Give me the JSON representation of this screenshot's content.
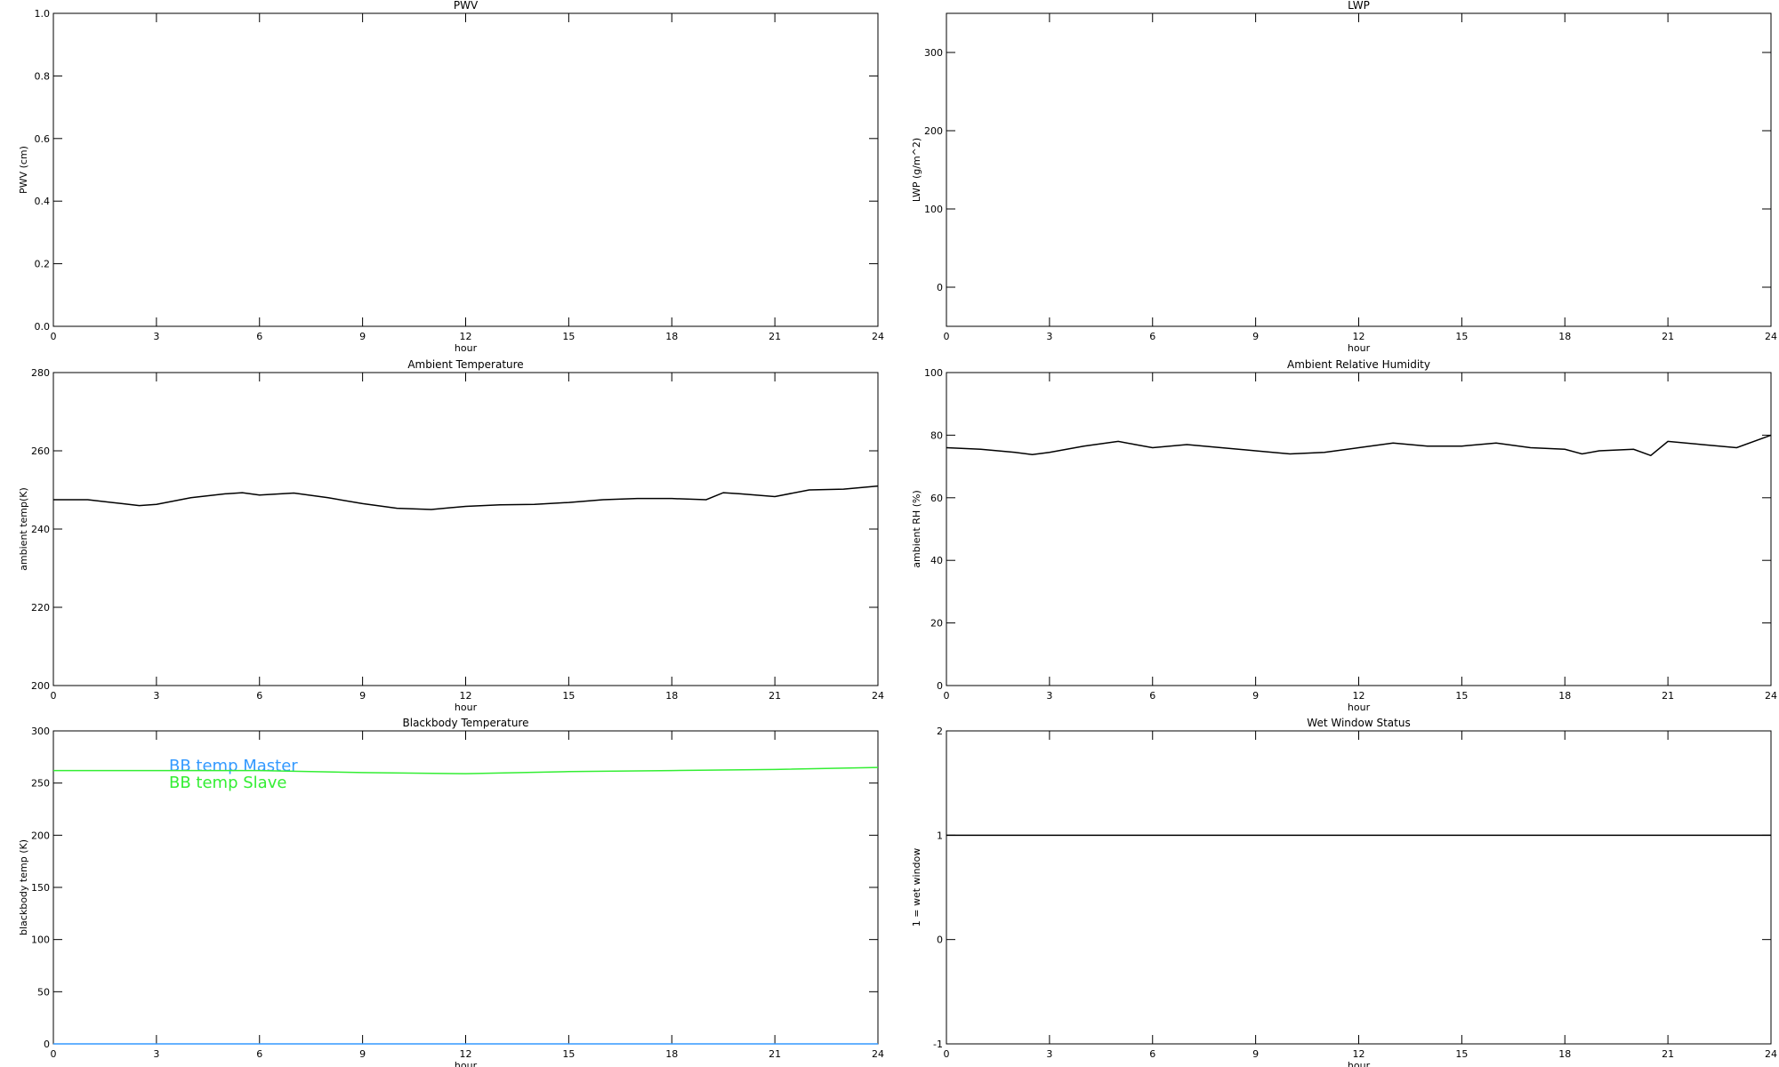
{
  "chart_data": [
    {
      "type": "line",
      "title": "PWV",
      "xlabel": "hour",
      "ylabel": "PWV (cm)",
      "xlim": [
        0,
        24
      ],
      "xticks": [
        0,
        3,
        6,
        9,
        12,
        15,
        18,
        21,
        24
      ],
      "ylim": [
        0,
        1
      ],
      "yticks": [
        {
          "value": 0,
          "label": "0.0"
        },
        0.2,
        0.4,
        0.6,
        0.8,
        {
          "value": 1,
          "label": "1.0"
        }
      ]
    },
    {
      "type": "line",
      "title": "LWP",
      "xlabel": "hour",
      "ylabel": "LWP (g/m^2)",
      "xlim": [
        0,
        24
      ],
      "xticks": [
        0,
        3,
        6,
        9,
        12,
        15,
        18,
        21,
        24
      ],
      "ylim": [
        -50,
        350
      ],
      "yticks": [
        0,
        100,
        200,
        300
      ]
    },
    {
      "type": "line",
      "title": "Ambient Temperature",
      "xlabel": "hour",
      "ylabel": "ambient temp(K)",
      "xlim": [
        0,
        24
      ],
      "xticks": [
        0,
        3,
        6,
        9,
        12,
        15,
        18,
        21,
        24
      ],
      "ylim": [
        200,
        280
      ],
      "yticks": [
        200,
        220,
        240,
        260,
        280
      ],
      "x": [
        0,
        1,
        2,
        2.5,
        3,
        4,
        5,
        5.5,
        6,
        7,
        8,
        9,
        10,
        11,
        12,
        13,
        14,
        15,
        16,
        17,
        18,
        19,
        19.5,
        20,
        21,
        22,
        23,
        24
      ],
      "series": [
        {
          "color": "#000000",
          "values": [
            247.5,
            247.5,
            246.5,
            246,
            246.3,
            248,
            249,
            249.3,
            248.7,
            249.2,
            248,
            246.5,
            245.3,
            245,
            245.8,
            246.2,
            246.3,
            246.8,
            247.5,
            247.8,
            247.8,
            247.5,
            249.3,
            249,
            248.3,
            250,
            250.2,
            251
          ]
        }
      ]
    },
    {
      "type": "line",
      "title": "Ambient Relative Humidity",
      "xlabel": "hour",
      "ylabel": "ambient RH (%)",
      "xlim": [
        0,
        24
      ],
      "xticks": [
        0,
        3,
        6,
        9,
        12,
        15,
        18,
        21,
        24
      ],
      "ylim": [
        0,
        100
      ],
      "yticks": [
        0,
        20,
        40,
        60,
        80,
        100
      ],
      "x": [
        0,
        1,
        2,
        2.5,
        3,
        4,
        5,
        5.5,
        6,
        7,
        8,
        9,
        10,
        11,
        12,
        13,
        14,
        15,
        16,
        17,
        18,
        18.5,
        19,
        20,
        20.5,
        21,
        22,
        23,
        24
      ],
      "series": [
        {
          "color": "#000000",
          "values": [
            76,
            75.5,
            74.5,
            73.8,
            74.5,
            76.5,
            78,
            77,
            76,
            77,
            76,
            75,
            74,
            74.5,
            76,
            77.5,
            76.5,
            76.5,
            77.5,
            76,
            75.5,
            74,
            75,
            75.5,
            73.5,
            78,
            77,
            76,
            80
          ]
        }
      ]
    },
    {
      "type": "line",
      "title": "Blackbody Temperature",
      "xlabel": "hour",
      "ylabel": "blackbody temp (K)",
      "xlim": [
        0,
        24
      ],
      "xticks": [
        0,
        3,
        6,
        9,
        12,
        15,
        18,
        21,
        24
      ],
      "ylim": [
        0,
        300
      ],
      "yticks": [
        0,
        50,
        100,
        150,
        200,
        250,
        300
      ],
      "x": [
        0,
        3,
        6,
        9,
        12,
        15,
        18,
        21,
        24
      ],
      "series": [
        {
          "name": "BB temp Master",
          "color": "#3399ff",
          "values": [
            0,
            0,
            0,
            0,
            0,
            0,
            0,
            0,
            0
          ]
        },
        {
          "name": "BB temp Slave",
          "color": "#33ee33",
          "values": [
            262,
            262,
            262,
            260,
            259,
            261,
            262,
            263,
            265
          ]
        }
      ]
    },
    {
      "type": "line",
      "title": "Wet Window Status",
      "xlabel": "hour",
      "ylabel": "1 = wet window",
      "xlim": [
        0,
        24
      ],
      "xticks": [
        0,
        3,
        6,
        9,
        12,
        15,
        18,
        21,
        24
      ],
      "ylim": [
        -1,
        2
      ],
      "yticks": [
        -1,
        0,
        1,
        2
      ],
      "x": [
        0,
        24
      ],
      "series": [
        {
          "color": "#000000",
          "values": [
            1,
            1
          ]
        }
      ]
    }
  ]
}
